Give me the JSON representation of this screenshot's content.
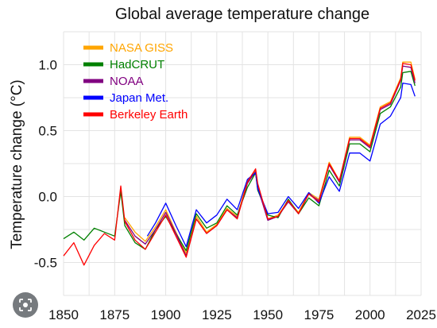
{
  "chart_data": {
    "type": "line",
    "title": "Global average temperature change",
    "ylabel": "Temperature change (°C)",
    "xlabel": "",
    "xlim": [
      1850,
      2025
    ],
    "ylim": [
      -0.75,
      1.25
    ],
    "x_ticks": [
      1850,
      1875,
      1900,
      1925,
      1950,
      1975,
      2000,
      2025
    ],
    "y_ticks": [
      -0.5,
      0.0,
      0.5,
      1.0
    ],
    "y_tick_labels": [
      "-0.5",
      "0.0",
      "0.5",
      "1.0"
    ],
    "grid": true,
    "legend_position": "top-left",
    "series": [
      {
        "name": "NASA GISS",
        "color": "#ffa500",
        "x": [
          1880,
          1885,
          1890,
          1895,
          1900,
          1905,
          1910,
          1915,
          1920,
          1925,
          1930,
          1935,
          1940,
          1944,
          1945,
          1950,
          1955,
          1960,
          1965,
          1970,
          1975,
          1980,
          1985,
          1990,
          1995,
          2000,
          2005,
          2010,
          2015,
          2016,
          2020,
          2022
        ],
        "y": [
          -0.16,
          -0.27,
          -0.34,
          -0.23,
          -0.1,
          -0.27,
          -0.43,
          -0.15,
          -0.27,
          -0.21,
          -0.09,
          -0.15,
          0.12,
          0.2,
          0.09,
          -0.17,
          -0.14,
          -0.03,
          -0.12,
          0.03,
          -0.02,
          0.26,
          0.12,
          0.45,
          0.45,
          0.39,
          0.68,
          0.72,
          0.9,
          1.02,
          1.02,
          0.89
        ]
      },
      {
        "name": "HadCRUT",
        "color": "#008000",
        "x": [
          1850,
          1855,
          1860,
          1865,
          1870,
          1875,
          1878,
          1880,
          1885,
          1890,
          1895,
          1900,
          1905,
          1910,
          1915,
          1920,
          1925,
          1930,
          1935,
          1940,
          1944,
          1945,
          1950,
          1955,
          1960,
          1965,
          1970,
          1975,
          1980,
          1985,
          1990,
          1995,
          2000,
          2005,
          2010,
          2015,
          2016,
          2020,
          2022
        ],
        "y": [
          -0.32,
          -0.27,
          -0.33,
          -0.24,
          -0.27,
          -0.3,
          0.04,
          -0.22,
          -0.35,
          -0.4,
          -0.25,
          -0.15,
          -0.28,
          -0.41,
          -0.13,
          -0.24,
          -0.2,
          -0.07,
          -0.14,
          0.07,
          0.18,
          0.05,
          -0.14,
          -0.16,
          -0.02,
          -0.13,
          -0.01,
          -0.07,
          0.2,
          0.08,
          0.4,
          0.4,
          0.34,
          0.63,
          0.68,
          0.83,
          0.94,
          0.95,
          0.84
        ]
      },
      {
        "name": "NOAA",
        "color": "#800080",
        "x": [
          1880,
          1885,
          1890,
          1895,
          1900,
          1905,
          1910,
          1915,
          1920,
          1925,
          1930,
          1935,
          1940,
          1944,
          1945,
          1950,
          1955,
          1960,
          1965,
          1970,
          1975,
          1980,
          1985,
          1990,
          1995,
          2000,
          2005,
          2010,
          2015,
          2016,
          2020,
          2022
        ],
        "y": [
          -0.18,
          -0.3,
          -0.36,
          -0.25,
          -0.12,
          -0.28,
          -0.45,
          -0.17,
          -0.28,
          -0.22,
          -0.1,
          -0.16,
          0.1,
          0.19,
          0.07,
          -0.18,
          -0.15,
          -0.04,
          -0.13,
          0.02,
          -0.03,
          0.24,
          0.11,
          0.43,
          0.43,
          0.37,
          0.66,
          0.7,
          0.88,
          0.99,
          0.98,
          0.86
        ]
      },
      {
        "name": "Japan Met.",
        "color": "#0000ff",
        "x": [
          1891,
          1895,
          1900,
          1905,
          1910,
          1915,
          1920,
          1925,
          1930,
          1935,
          1940,
          1944,
          1945,
          1950,
          1955,
          1960,
          1965,
          1970,
          1975,
          1980,
          1985,
          1990,
          1995,
          2000,
          2005,
          2010,
          2015,
          2016,
          2020,
          2022
        ],
        "y": [
          -0.3,
          -0.2,
          -0.05,
          -0.22,
          -0.38,
          -0.1,
          -0.2,
          -0.14,
          -0.02,
          -0.1,
          0.13,
          0.18,
          0.06,
          -0.13,
          -0.12,
          0.0,
          -0.09,
          0.03,
          -0.05,
          0.15,
          0.04,
          0.33,
          0.33,
          0.27,
          0.55,
          0.61,
          0.75,
          0.86,
          0.85,
          0.76
        ]
      },
      {
        "name": "Berkeley Earth",
        "color": "#ff0000",
        "x": [
          1850,
          1855,
          1860,
          1865,
          1870,
          1875,
          1878,
          1880,
          1885,
          1890,
          1895,
          1900,
          1905,
          1910,
          1915,
          1920,
          1925,
          1930,
          1935,
          1940,
          1944,
          1945,
          1950,
          1955,
          1960,
          1965,
          1970,
          1975,
          1980,
          1985,
          1990,
          1995,
          2000,
          2005,
          2010,
          2015,
          2016,
          2020,
          2022
        ],
        "y": [
          -0.45,
          -0.35,
          -0.52,
          -0.37,
          -0.28,
          -0.33,
          0.08,
          -0.19,
          -0.33,
          -0.4,
          -0.27,
          -0.14,
          -0.3,
          -0.46,
          -0.17,
          -0.28,
          -0.22,
          -0.1,
          -0.17,
          0.11,
          0.21,
          0.1,
          -0.17,
          -0.15,
          -0.03,
          -0.13,
          0.02,
          -0.04,
          0.25,
          0.12,
          0.44,
          0.44,
          0.38,
          0.67,
          0.71,
          0.89,
          1.01,
          1.0,
          0.88
        ]
      }
    ]
  },
  "ui": {
    "lens_icon": "lens-search-icon"
  }
}
